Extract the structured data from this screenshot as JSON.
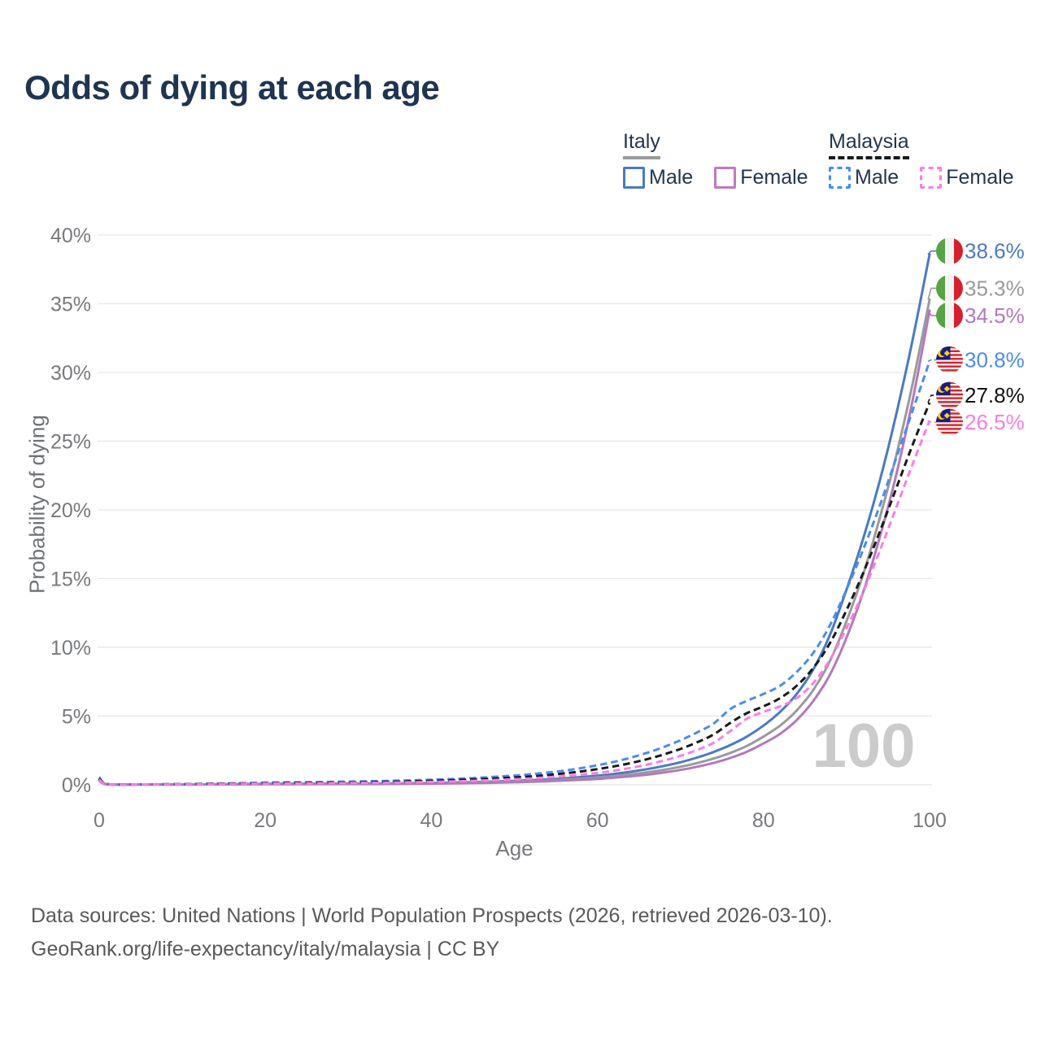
{
  "title": "Odds of dying at each age",
  "legend": {
    "groups": [
      {
        "label": "Italy",
        "line_style": "solid",
        "line_color": "#9a9a9a",
        "items": [
          {
            "label": "Male",
            "color": "#4a7ac2",
            "dash": false
          },
          {
            "label": "Female",
            "color": "#bd7ac0",
            "dash": false
          }
        ]
      },
      {
        "label": "Malaysia",
        "line_style": "dashed",
        "line_color": "#1a1a1a",
        "items": [
          {
            "label": "Male",
            "color": "#4b8bf0",
            "dash": true
          },
          {
            "label": "Female",
            "color": "#fb7de4",
            "dash": true
          }
        ]
      }
    ]
  },
  "chart_data": {
    "type": "line",
    "title": "Odds of dying at each age",
    "xlabel": "Age",
    "ylabel": "Probability of dying",
    "xlim": [
      0,
      100
    ],
    "ylim": [
      0,
      40
    ],
    "grid": "horizontal",
    "legend_position": "top-right",
    "watermark": "100",
    "x_ticks": [
      {
        "value": 0,
        "label": "0"
      },
      {
        "value": 20,
        "label": "20"
      },
      {
        "value": 40,
        "label": "40"
      },
      {
        "value": 60,
        "label": "60"
      },
      {
        "value": 80,
        "label": "80"
      },
      {
        "value": 100,
        "label": "100"
      }
    ],
    "y_ticks": [
      {
        "value": 0,
        "label": "0%"
      },
      {
        "value": 5,
        "label": "5%"
      },
      {
        "value": 10,
        "label": "10%"
      },
      {
        "value": 15,
        "label": "15%"
      },
      {
        "value": 20,
        "label": "20%"
      },
      {
        "value": 25,
        "label": "25%"
      },
      {
        "value": 30,
        "label": "30%"
      },
      {
        "value": 35,
        "label": "35%"
      },
      {
        "value": 40,
        "label": "40%"
      }
    ],
    "ages": [
      0,
      1,
      5,
      10,
      15,
      20,
      25,
      30,
      35,
      40,
      45,
      50,
      52,
      54,
      56,
      58,
      60,
      62,
      64,
      66,
      68,
      70,
      72,
      74,
      76,
      78,
      80,
      82,
      84,
      86,
      88,
      90,
      92,
      94,
      96,
      98,
      100
    ],
    "series": [
      {
        "id": "italy-male",
        "name": "Italy Male",
        "country": "Italy",
        "flag": "italy",
        "color": "#4a7ac2",
        "label_color": "#4a7ac2",
        "dash": false,
        "end_label": "38.6%",
        "end_value": 38.6,
        "values": [
          0.36,
          0.03,
          0.01,
          0.01,
          0.03,
          0.06,
          0.07,
          0.08,
          0.09,
          0.12,
          0.18,
          0.28,
          0.33,
          0.39,
          0.46,
          0.55,
          0.65,
          0.78,
          0.94,
          1.13,
          1.36,
          1.63,
          1.97,
          2.38,
          2.88,
          3.5,
          4.3,
          5.3,
          6.6,
          8.4,
          10.9,
          14.2,
          17.9,
          22.1,
          27.0,
          32.5,
          38.6
        ]
      },
      {
        "id": "italy",
        "name": "Italy",
        "country": "Italy",
        "flag": "italy",
        "color": "#9a9a9a",
        "label_color": "#9a9a9a",
        "dash": false,
        "end_label": "35.3%",
        "end_value": 35.3,
        "values": [
          0.31,
          0.03,
          0.01,
          0.01,
          0.02,
          0.04,
          0.05,
          0.06,
          0.07,
          0.09,
          0.14,
          0.22,
          0.26,
          0.31,
          0.37,
          0.44,
          0.52,
          0.63,
          0.75,
          0.9,
          1.08,
          1.3,
          1.57,
          1.9,
          2.31,
          2.82,
          3.5,
          4.3,
          5.4,
          6.9,
          9.0,
          11.9,
          15.3,
          19.4,
          24.0,
          29.3,
          35.3
        ]
      },
      {
        "id": "italy-female",
        "name": "Italy Female",
        "country": "Italy",
        "flag": "italy",
        "color": "#b378be",
        "label_color": "#b378be",
        "dash": false,
        "end_label": "34.5%",
        "end_value": 34.5,
        "values": [
          0.28,
          0.02,
          0.01,
          0.01,
          0.02,
          0.03,
          0.03,
          0.04,
          0.05,
          0.07,
          0.11,
          0.17,
          0.21,
          0.25,
          0.3,
          0.35,
          0.42,
          0.51,
          0.61,
          0.73,
          0.88,
          1.07,
          1.3,
          1.58,
          1.94,
          2.39,
          3.0,
          3.7,
          4.7,
          6.1,
          8.0,
          10.7,
          14.0,
          18.0,
          22.6,
          28.1,
          34.5
        ]
      },
      {
        "id": "malaysia-male",
        "name": "Malaysia Male",
        "country": "Malaysia",
        "flag": "malaysia",
        "color": "#4b8bf0",
        "label_color": "#4b8bf0",
        "dash": true,
        "end_label": "30.8%",
        "end_value": 30.8,
        "values": [
          0.55,
          0.04,
          0.02,
          0.04,
          0.09,
          0.14,
          0.18,
          0.22,
          0.28,
          0.36,
          0.48,
          0.66,
          0.76,
          0.88,
          1.02,
          1.2,
          1.41,
          1.66,
          1.96,
          2.32,
          2.74,
          3.23,
          3.8,
          4.45,
          5.5,
          6.1,
          6.6,
          7.2,
          8.2,
          9.6,
          11.6,
          14.2,
          17.1,
          20.3,
          23.8,
          27.3,
          30.8
        ]
      },
      {
        "id": "malaysia",
        "name": "Malaysia",
        "country": "Malaysia",
        "flag": "malaysia",
        "color": "#1a1a1a",
        "label_color": "#111111",
        "dash": true,
        "end_label": "27.8%",
        "end_value": 27.8,
        "values": [
          0.45,
          0.04,
          0.02,
          0.03,
          0.07,
          0.1,
          0.13,
          0.16,
          0.21,
          0.28,
          0.38,
          0.52,
          0.6,
          0.7,
          0.82,
          0.96,
          1.13,
          1.33,
          1.57,
          1.86,
          2.2,
          2.6,
          3.08,
          3.65,
          4.5,
          5.2,
          5.7,
          6.3,
          7.2,
          8.5,
          10.3,
          12.7,
          15.4,
          18.4,
          21.6,
          24.8,
          27.8
        ]
      },
      {
        "id": "malaysia-female",
        "name": "Malaysia Female",
        "country": "Malaysia",
        "flag": "malaysia",
        "color": "#fb7de4",
        "label_color": "#fb7de4",
        "dash": true,
        "end_label": "26.5%",
        "end_value": 26.5,
        "values": [
          0.38,
          0.03,
          0.015,
          0.02,
          0.05,
          0.07,
          0.09,
          0.12,
          0.15,
          0.2,
          0.28,
          0.39,
          0.45,
          0.53,
          0.62,
          0.73,
          0.86,
          1.02,
          1.22,
          1.46,
          1.75,
          2.1,
          2.52,
          3.05,
          3.9,
          4.8,
          5.3,
          5.7,
          6.3,
          7.4,
          9.1,
          11.4,
          14.0,
          17.0,
          20.2,
          23.4,
          26.5
        ]
      }
    ]
  },
  "footer": {
    "line1": "Data sources: United Nations | World Population Prospects (2026, retrieved 2026-03-10).",
    "line2": "GeoRank.org/life-expectancy/italy/malaysia | CC BY"
  }
}
